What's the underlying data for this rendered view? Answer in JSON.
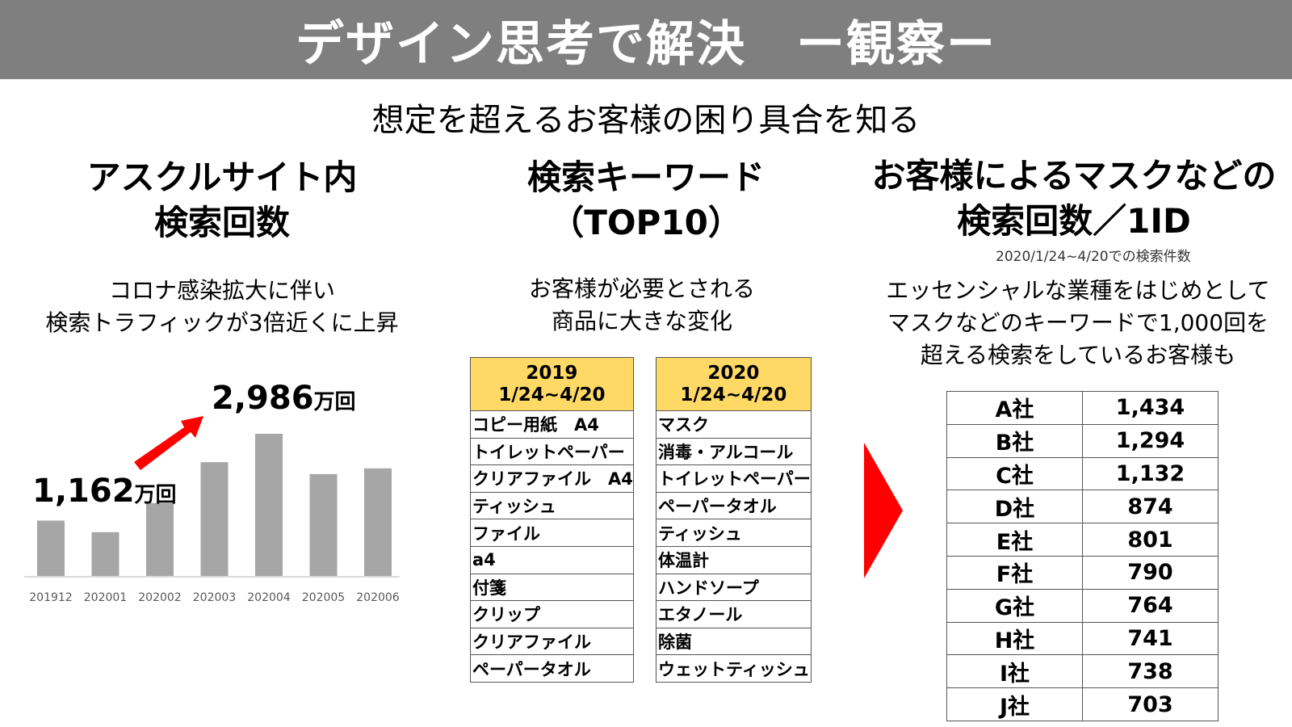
{
  "header": {
    "title": "デザイン思考で解決　ー観察ー"
  },
  "subtitle": "想定を超えるお客様の困り具合を知る",
  "col1": {
    "title_line1": "アスクルサイト内",
    "title_line2": "検索回数",
    "desc_line1": "コロナ感染拡大に伴い",
    "desc_line2": "検索トラフィックが3倍近くに上昇",
    "label_low": "1,162",
    "label_high": "2,986",
    "label_unit": "万回"
  },
  "chart_data": {
    "type": "bar",
    "categories": [
      "201912",
      "202001",
      "202002",
      "202003",
      "202004",
      "202005",
      "202006"
    ],
    "values": [
      1162,
      920,
      1530,
      2390,
      2986,
      2140,
      2260
    ],
    "unit": "万回",
    "bar_color": "#a6a6a6",
    "annotation_color": "#ff0000",
    "grid": false
  },
  "col2": {
    "title_line1": "検索キーワード",
    "title_line2": "（TOP10）",
    "desc_line1": "お客様が必要とされる",
    "desc_line2": "商品に大きな変化",
    "table2019": {
      "year": "2019",
      "range": "1/24~4/20",
      "items": [
        "コピー用紙　A4",
        "トイレットペーパー",
        "クリアファイル　A4",
        "ティッシュ",
        "ファイル",
        "a4",
        "付箋",
        "クリップ",
        "クリアファイル",
        "ペーパータオル"
      ]
    },
    "table2020": {
      "year": "2020",
      "range": "1/24~4/20",
      "items": [
        "マスク",
        "消毒・アルコール",
        "トイレットペーパー",
        "ペーパータオル",
        "ティッシュ",
        "体温計",
        "ハンドソープ",
        "エタノール",
        "除菌",
        "ウェットティッシュ"
      ]
    },
    "header_color": "#ffd966"
  },
  "col3": {
    "title_line1": "お客様によるマスクなどの",
    "title_line2": "検索回数／1ID",
    "note": "2020/1/24~4/20での検索件数",
    "desc_line1": "エッセンシャルな業種をはじめとして",
    "desc_line2": "マスクなどのキーワードで1,000回を",
    "desc_line3": "超える検索をしているお客様も",
    "rows": [
      {
        "company": "A社",
        "count": "1,434"
      },
      {
        "company": "B社",
        "count": "1,294"
      },
      {
        "company": "C社",
        "count": "1,132"
      },
      {
        "company": "D社",
        "count": "874"
      },
      {
        "company": "E社",
        "count": "801"
      },
      {
        "company": "F社",
        "count": "790"
      },
      {
        "company": "G社",
        "count": "764"
      },
      {
        "company": "H社",
        "count": "741"
      },
      {
        "company": "I社",
        "count": "738"
      },
      {
        "company": "J社",
        "count": "703"
      }
    ]
  }
}
